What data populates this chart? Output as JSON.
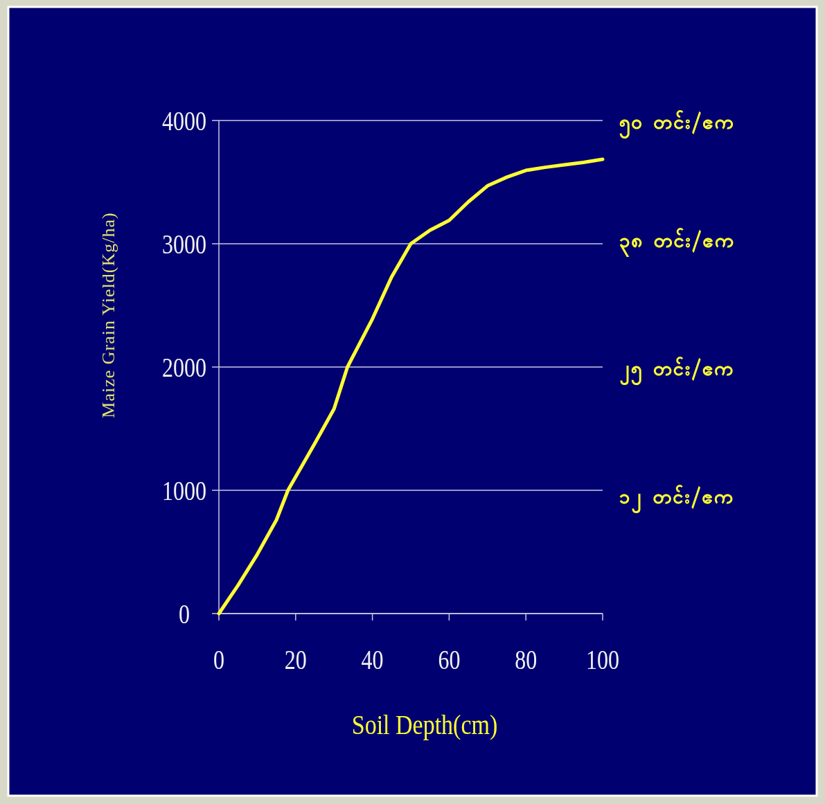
{
  "chart_data": {
    "type": "line",
    "xlabel": "Soil Depth(cm)",
    "ylabel": "Maize Grain Yield(Kg/ha)",
    "x": [
      0,
      5,
      10,
      15,
      18,
      25,
      30,
      33.5,
      40,
      45,
      50,
      55,
      60,
      65,
      70,
      75,
      80,
      85,
      90,
      95,
      100
    ],
    "series": [
      {
        "color": "#ffff33",
        "values": [
          0,
          230,
          480,
          760,
          1000,
          1380,
          1660,
          2000,
          2390,
          2730,
          3000,
          3110,
          3190,
          3340,
          3470,
          3540,
          3595,
          3620,
          3640,
          3660,
          3685
        ]
      }
    ],
    "xlim": [
      0,
      100
    ],
    "xticks": [
      0,
      20,
      40,
      60,
      80,
      100
    ],
    "ylim": [
      0,
      4000
    ],
    "yticks": [
      0,
      1000,
      2000,
      3000,
      4000
    ],
    "y2lim": [
      0,
      50
    ],
    "y2ticks": [
      {
        "value": 12,
        "label": "၁၂ တင်း/ဧက"
      },
      {
        "value": 25,
        "label": "၂၅ တင်း/ဧက"
      },
      {
        "value": 38,
        "label": "၃၈ တင်း/ဧက"
      },
      {
        "value": 50,
        "label": "၅၀ တင်း/ဧက"
      }
    ],
    "grid": "y",
    "marker": "none",
    "line_style": "solid"
  }
}
